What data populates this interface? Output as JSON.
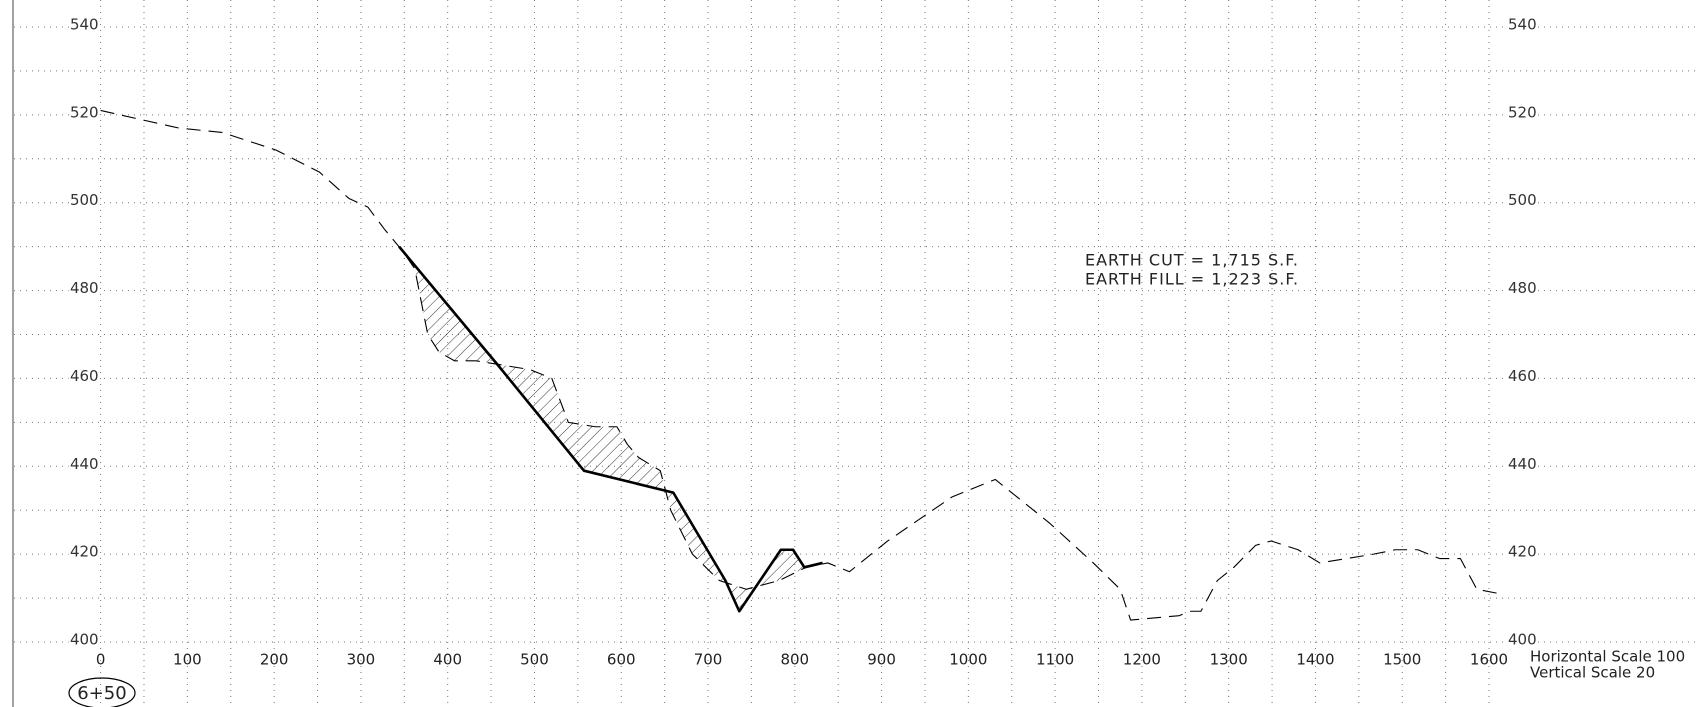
{
  "chart_data": {
    "type": "line",
    "annotations": [
      "EARTH CUT = 1,715 S.F.",
      "EARTH FILL = 1,223 S.F."
    ],
    "station": "6+50",
    "scale_notes": [
      "Horizontal Scale 100",
      "Vertical Scale 20"
    ],
    "xlim": [
      0,
      1600
    ],
    "xticks": [
      0,
      100,
      200,
      300,
      400,
      500,
      600,
      700,
      800,
      900,
      1000,
      1100,
      1200,
      1300,
      1400,
      1500,
      1600
    ],
    "ylim": [
      400,
      540
    ],
    "yticks": [
      400,
      420,
      440,
      460,
      480,
      500,
      520,
      540
    ],
    "grid": true,
    "series": [
      {
        "color": "#000000",
        "style": "dashed",
        "x": [
          0,
          90,
          140,
          202,
          252,
          286,
          308,
          327,
          348,
          362,
          377,
          390,
          408,
          433,
          464,
          495,
          520,
          539,
          570,
          595,
          607,
          620,
          645,
          657,
          682,
          713,
          744,
          782,
          813,
          838,
          863,
          907,
          981,
          1031,
          1094,
          1144,
          1175,
          1187,
          1243,
          1256,
          1268,
          1287,
          1306,
          1331,
          1349,
          1380,
          1405,
          1436,
          1467,
          1492,
          1518,
          1543,
          1567,
          1586,
          1612
        ],
        "values": [
          521,
          517,
          516,
          512,
          507,
          501,
          499,
          494,
          489,
          485,
          470,
          466,
          464,
          464,
          463,
          462,
          460,
          450,
          449,
          449,
          445,
          442,
          439,
          430,
          420,
          414,
          412,
          414,
          417,
          418,
          416,
          423,
          433,
          437,
          427,
          418,
          412,
          405,
          406,
          407,
          407,
          414,
          417,
          422,
          423,
          421,
          418,
          419,
          420,
          421,
          421,
          419,
          419,
          412,
          411
        ]
      },
      {
        "color": "#000000",
        "style": "solid",
        "x": [
          344,
          458,
          557,
          660,
          720,
          736,
          784,
          798,
          811,
          832
        ],
        "values": [
          490,
          463,
          439,
          434,
          414,
          407,
          421,
          421,
          417,
          418
        ]
      }
    ]
  }
}
